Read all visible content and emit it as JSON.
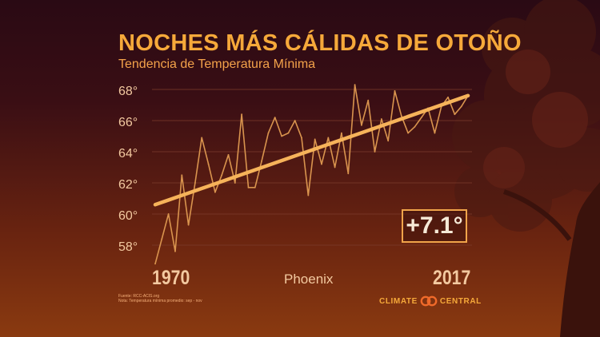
{
  "title": "NOCHES MÁS CÁLIDAS DE OTOÑO",
  "subtitle": "Tendencia de Temperatura Mínima",
  "badge": "+7.1°",
  "year_start": "1970",
  "year_end": "2017",
  "location": "Phoenix",
  "source_line1": "Fuente: RCC-ACIS.org",
  "source_line2": "Nota: Temperatura mínima promedio: sep - nov",
  "logo_left": "CLIMATE",
  "logo_right": "CENTRAL",
  "colors": {
    "line": "#d9944e",
    "trend": "#f6b35a",
    "grid": "#7a3a2a",
    "title": "#f6a93a",
    "badge_text": "#f6e9d6"
  },
  "chart_data": {
    "type": "line",
    "title": "NOCHES MÁS CÁLIDAS DE OTOÑO",
    "subtitle": "Tendencia de Temperatura Mínima",
    "xlabel": "",
    "ylabel": "",
    "xlim": [
      1970,
      2017
    ],
    "ylim": [
      56.5,
      68.5
    ],
    "yticks": [
      "58°",
      "60°",
      "62°",
      "64°",
      "66°",
      "68°"
    ],
    "ytick_values": [
      58,
      60,
      62,
      64,
      66,
      68
    ],
    "grid": true,
    "x": [
      1970,
      1971,
      1972,
      1973,
      1974,
      1975,
      1976,
      1977,
      1978,
      1979,
      1980,
      1981,
      1982,
      1983,
      1984,
      1985,
      1986,
      1987,
      1988,
      1989,
      1990,
      1991,
      1992,
      1993,
      1994,
      1995,
      1996,
      1997,
      1998,
      1999,
      2000,
      2001,
      2002,
      2003,
      2004,
      2005,
      2006,
      2007,
      2008,
      2009,
      2010,
      2011,
      2012,
      2013,
      2014,
      2015,
      2016,
      2017
    ],
    "series": [
      {
        "values": [
          56.8,
          58.4,
          60.0,
          57.6,
          62.5,
          59.3,
          62.0,
          64.9,
          63.2,
          61.4,
          62.5,
          63.8,
          62.0,
          66.4,
          61.7,
          61.7,
          63.4,
          65.2,
          66.2,
          65.0,
          65.2,
          66.0,
          64.9,
          61.2,
          64.8,
          63.2,
          64.9,
          63.0,
          65.2,
          62.6,
          68.3,
          65.7,
          67.3,
          64.0,
          66.1,
          64.7,
          67.9,
          66.3,
          65.2,
          65.6,
          66.2,
          66.8,
          65.2,
          66.9,
          67.5,
          66.4,
          66.9,
          67.6
        ]
      }
    ],
    "trend": {
      "x": [
        1970,
        2017
      ],
      "values": [
        60.6,
        67.6
      ],
      "change": "+7.1°"
    }
  }
}
